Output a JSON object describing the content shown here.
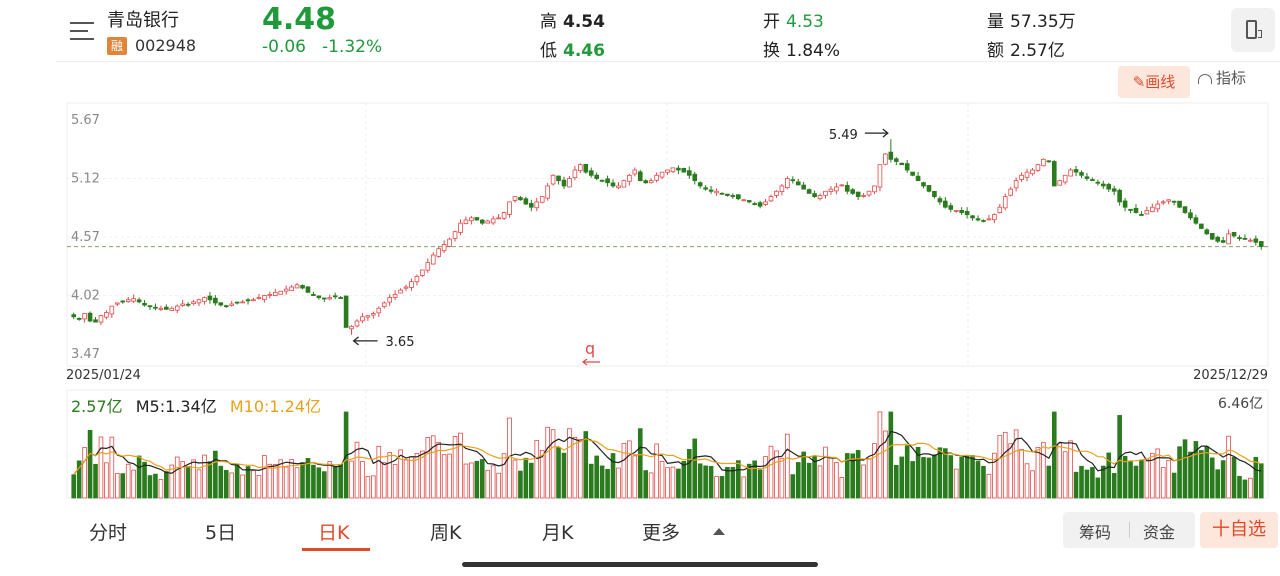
{
  "header": {
    "stock_name": "青岛银行",
    "margin_badge": "融",
    "code": "002948",
    "price": "4.48",
    "change": "-0.06",
    "change_pct": "-1.32%",
    "stats": [
      {
        "label": "高",
        "value": "4.54",
        "color": "dark"
      },
      {
        "label": "低",
        "value": "4.46",
        "color": "green"
      },
      {
        "label": "开",
        "value": "4.53",
        "color": "green"
      },
      {
        "label": "换",
        "value": "1.84%",
        "color": "dark"
      },
      {
        "label": "量",
        "value": "57.35万",
        "color": "dark"
      },
      {
        "label": "额",
        "value": "2.57亿",
        "color": "dark"
      }
    ],
    "icons": [
      "menu-icon",
      "phone-icon"
    ]
  },
  "toolbar": {
    "draw_label": "画线",
    "indicator_label": "指标"
  },
  "chart_data": [
    {
      "type": "candlestick",
      "x_start": "2025/01/24",
      "x_end": "2025/12/29",
      "y_ticks": [
        "5.67",
        "5.12",
        "4.57",
        "4.02",
        "3.47"
      ],
      "ylim": [
        3.47,
        5.67
      ],
      "last_price_line": 4.48,
      "max_annotation": {
        "label": "5.49",
        "value": 5.49
      },
      "min_annotation": {
        "label": "3.65",
        "value": 3.65
      },
      "marker_label": "q",
      "up_color": "#e04a4a",
      "down_color": "#2a7a1e",
      "closes_approx": [
        3.82,
        3.8,
        3.85,
        3.78,
        3.77,
        3.83,
        3.86,
        3.92,
        3.95,
        3.96,
        3.98,
        3.99,
        3.96,
        3.93,
        3.92,
        3.9,
        3.9,
        3.89,
        3.9,
        3.92,
        3.94,
        3.93,
        3.96,
        3.98,
        4.0,
        3.98,
        3.95,
        3.93,
        3.92,
        3.94,
        3.95,
        3.96,
        3.97,
        3.98,
        4.0,
        4.02,
        4.03,
        4.05,
        4.06,
        4.08,
        4.1,
        4.12,
        4.09,
        4.05,
        4.02,
        4.0,
        3.99,
        4.0,
        4.01,
        4.0,
        3.72,
        3.73,
        3.78,
        3.82,
        3.83,
        3.85,
        3.9,
        3.95,
        4.0,
        4.03,
        4.07,
        4.1,
        4.15,
        4.2,
        4.26,
        4.33,
        4.4,
        4.46,
        4.5,
        4.55,
        4.62,
        4.7,
        4.73,
        4.75,
        4.73,
        4.7,
        4.72,
        4.74,
        4.75,
        4.8,
        4.9,
        4.95,
        4.92,
        4.88,
        4.85,
        4.9,
        4.95,
        5.05,
        5.15,
        5.1,
        5.05,
        5.12,
        5.2,
        5.25,
        5.18,
        5.15,
        5.12,
        5.1,
        5.08,
        5.05,
        5.05,
        5.1,
        5.15,
        5.2,
        5.1,
        5.08,
        5.1,
        5.15,
        5.18,
        5.2,
        5.22,
        5.2,
        5.18,
        5.15,
        5.1,
        5.05,
        5.02,
        5.0,
        5.0,
        4.98,
        4.96,
        4.95,
        4.93,
        4.92,
        4.9,
        4.88,
        4.86,
        4.9,
        4.95,
        5.0,
        5.05,
        5.12,
        5.1,
        5.06,
        5.02,
        4.98,
        4.95,
        4.96,
        5.0,
        5.02,
        5.04,
        5.06,
        5.0,
        4.98,
        4.95,
        4.96,
        5.0,
        5.05,
        5.25,
        5.35,
        5.3,
        5.28,
        5.25,
        5.2,
        5.15,
        5.1,
        5.05,
        5.0,
        4.95,
        4.9,
        4.85,
        4.83,
        4.82,
        4.8,
        4.78,
        4.75,
        4.73,
        4.72,
        4.74,
        4.78,
        4.85,
        4.95,
        5.02,
        5.1,
        5.15,
        5.18,
        5.2,
        5.25,
        5.3,
        5.28,
        5.05,
        5.1,
        5.15,
        5.2,
        5.18,
        5.15,
        5.12,
        5.1,
        5.08,
        5.05,
        5.02,
        5.0,
        4.9,
        4.85,
        4.82,
        4.8,
        4.78,
        4.82,
        4.85,
        4.88,
        4.9,
        4.92,
        4.9,
        4.85,
        4.8,
        4.75,
        4.7,
        4.65,
        4.6,
        4.55,
        4.53,
        4.52,
        4.6,
        4.58,
        4.56,
        4.55,
        4.54,
        4.52,
        4.48
      ]
    },
    {
      "type": "bar",
      "title": "volume",
      "labels": [
        "2.57亿",
        "M5:1.34亿",
        "M10:1.24亿"
      ],
      "label_colors": [
        "#2a7a1e",
        "#222222",
        "#e8a21a"
      ],
      "max_label": "6.46亿",
      "ylim": [
        0,
        6.46
      ],
      "ma5_color": "#222222",
      "ma10_color": "#e8a21a"
    }
  ],
  "tabs": [
    "分时",
    "5日",
    "日K",
    "周K",
    "月K",
    "更多"
  ],
  "active_tab": "日K",
  "side_chips": [
    "筹码",
    "资金"
  ],
  "add_label": "十自选"
}
